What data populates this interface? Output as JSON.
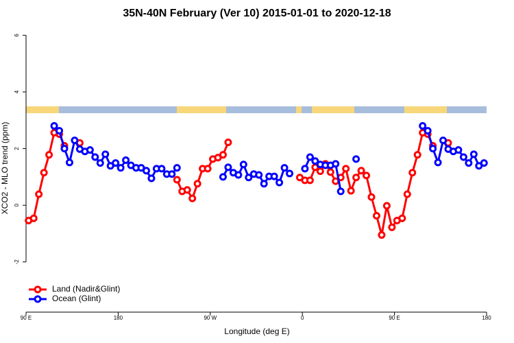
{
  "chart_data": {
    "type": "line",
    "title": "35N-40N February (Ver 10)   2015-01-01 to 2020-12-18",
    "x_label": "Longitude (deg E)",
    "y_label": "XCO2 - MLO trend (ppm)",
    "x": [
      92.5,
      97.5,
      102.5,
      107.5,
      112.5,
      117.5,
      122.5,
      127.5,
      132.5,
      137.5,
      142.5,
      147.5,
      152.5,
      157.5,
      162.5,
      167.5,
      172.5,
      177.5,
      182.5,
      187.5,
      192.5,
      197.5,
      202.5,
      207.5,
      212.5,
      217.5,
      222.5,
      227.5,
      232.5,
      237.5,
      242.5,
      247.5,
      252.5,
      257.5,
      262.5,
      267.5,
      272.5,
      277.5,
      282.5,
      287.5,
      292.5,
      297.5,
      302.5,
      307.5,
      312.5,
      317.5,
      322.5,
      327.5,
      332.5,
      337.5,
      342.5,
      347.5,
      352.5,
      357.5,
      362.5,
      367.5,
      372.5,
      377.5,
      382.5,
      387.5,
      392.5,
      397.5,
      402.5,
      407.5,
      412.5,
      417.5,
      422.5,
      427.5,
      432.5,
      437.5,
      442.5,
      447.5,
      452.5,
      457.5,
      462.5,
      467.5,
      472.5,
      477.5,
      482.5,
      487.5,
      492.5,
      497.5,
      502.5,
      507.5,
      512.5,
      517.5,
      522.5,
      527.5,
      532.5,
      537.5
    ],
    "series": [
      {
        "name": "Land (Nadir&Glint)",
        "color": "#ff0000",
        "values": [
          -0.54,
          -0.46,
          0.39,
          1.15,
          1.78,
          2.56,
          2.51,
          2.1,
          null,
          null,
          2.2,
          null,
          null,
          null,
          null,
          null,
          null,
          null,
          null,
          null,
          null,
          null,
          null,
          null,
          null,
          null,
          null,
          null,
          null,
          0.9,
          0.49,
          0.54,
          0.24,
          0.76,
          1.29,
          1.29,
          1.63,
          1.68,
          1.78,
          2.22,
          null,
          null,
          null,
          null,
          null,
          null,
          null,
          null,
          null,
          null,
          null,
          null,
          null,
          0.98,
          0.88,
          0.88,
          1.34,
          1.2,
          1.46,
          1.17,
          0.85,
          0.98,
          1.29,
          0.51,
          0.98,
          1.22,
          1.05,
          0.29,
          -0.37,
          -1.05,
          -0.02,
          -0.78,
          -0.54,
          -0.46,
          0.39,
          1.15,
          1.78,
          2.56,
          2.51,
          2.1,
          null,
          null,
          2.2,
          null,
          null,
          null,
          null,
          null,
          null,
          null
        ]
      },
      {
        "name": "Ocean (Glint)",
        "color": "#0000ff",
        "values": [
          null,
          null,
          null,
          null,
          null,
          2.8,
          2.63,
          2.0,
          1.51,
          2.29,
          1.98,
          1.9,
          1.95,
          1.7,
          1.49,
          1.8,
          1.39,
          1.49,
          1.32,
          1.59,
          1.41,
          1.32,
          1.32,
          1.22,
          0.95,
          1.29,
          1.29,
          1.1,
          1.1,
          1.32,
          null,
          null,
          null,
          null,
          null,
          null,
          null,
          null,
          1.0,
          1.34,
          1.15,
          1.07,
          1.44,
          0.98,
          1.1,
          1.07,
          0.76,
          1.02,
          1.02,
          0.8,
          1.32,
          1.12,
          null,
          null,
          1.29,
          1.7,
          1.56,
          1.44,
          1.41,
          1.41,
          1.46,
          0.49,
          null,
          null,
          1.63,
          null,
          null,
          null,
          null,
          null,
          null,
          null,
          null,
          null,
          null,
          null,
          null,
          2.8,
          2.63,
          2.0,
          1.51,
          2.29,
          1.98,
          1.9,
          1.95,
          1.7,
          1.49,
          1.8,
          1.39,
          1.49
        ]
      }
    ],
    "xlim": [
      90,
      540
    ],
    "xticks": [
      {
        "value": 90,
        "label": "90 E"
      },
      180,
      {
        "value": 270,
        "label": "90 W"
      },
      {
        "value": 360,
        "label": "0"
      },
      {
        "value": 450,
        "label": "90 E"
      },
      {
        "value": 540,
        "label": "180"
      }
    ],
    "ylim": [
      -3.7,
      6.3
    ],
    "yticks": [
      -2,
      0,
      2,
      4,
      6
    ],
    "legend": "bottomleft"
  }
}
